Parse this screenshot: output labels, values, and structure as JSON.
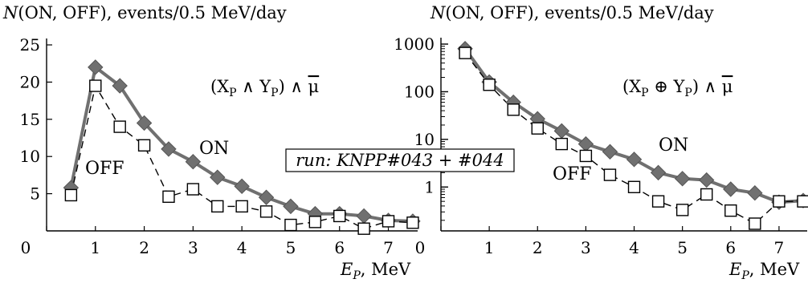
{
  "chart_data": [
    {
      "type": "line",
      "ylabel_parts": [
        "N",
        "(ON, OFF), events/0.5 MeV/day"
      ],
      "xlabel_parts": [
        "E",
        "P",
        ", MeV"
      ],
      "annotation_parts": [
        "(X",
        "P",
        " ∧ Y",
        "P",
        ") ∧ ",
        "μ"
      ],
      "x_ticks": [
        0,
        1,
        2,
        3,
        4,
        5,
        6,
        7
      ],
      "y_ticks": [
        5,
        10,
        15,
        20,
        25
      ],
      "xlim": [
        0,
        7.6
      ],
      "ylim": [
        0,
        25
      ],
      "y_scale": "linear",
      "series": [
        {
          "name": "ON",
          "style": "solid thick, filled diamonds",
          "color": "#707070",
          "x": [
            0.5,
            1.0,
            1.5,
            2.0,
            2.5,
            3.0,
            3.5,
            4.0,
            4.5,
            5.0,
            5.5,
            6.0,
            6.5,
            7.0,
            7.5
          ],
          "values": [
            5.8,
            22.0,
            19.5,
            14.5,
            11.0,
            9.3,
            7.2,
            6.0,
            4.5,
            3.3,
            2.3,
            2.3,
            2.0,
            1.4,
            1.3
          ]
        },
        {
          "name": "OFF",
          "style": "dashed, open squares",
          "color": "#000000",
          "x": [
            0.5,
            1.0,
            1.5,
            2.0,
            2.5,
            3.0,
            3.5,
            4.0,
            4.5,
            5.0,
            5.5,
            6.0,
            6.5,
            7.0,
            7.5
          ],
          "values": [
            4.8,
            19.5,
            14.0,
            11.5,
            4.6,
            5.6,
            3.3,
            3.3,
            2.6,
            0.8,
            1.2,
            2.0,
            0.3,
            1.3,
            1.1
          ]
        }
      ]
    },
    {
      "type": "line",
      "ylabel_parts": [
        "N",
        "(ON, OFF), events/0.5 MeV/day"
      ],
      "xlabel_parts": [
        "E",
        "P",
        ", MeV"
      ],
      "annotation_parts": [
        "(X",
        "P",
        " ⊕ Y",
        "P",
        ") ∧ ",
        "μ"
      ],
      "x_ticks": [
        0,
        1,
        2,
        3,
        4,
        5,
        6,
        7
      ],
      "y_ticks": [
        1,
        10,
        100,
        1000
      ],
      "xlim": [
        0,
        7.6
      ],
      "ylim": [
        0.12,
        1000
      ],
      "y_scale": "log",
      "series": [
        {
          "name": "ON",
          "style": "solid thick, filled diamonds",
          "color": "#707070",
          "x": [
            0.5,
            1.0,
            1.5,
            2.0,
            2.5,
            3.0,
            3.5,
            4.0,
            4.5,
            5.0,
            5.5,
            6.0,
            6.5,
            7.0,
            7.5
          ],
          "values": [
            800,
            160,
            60,
            27,
            15,
            8,
            5.5,
            3.8,
            2.0,
            1.5,
            1.4,
            0.9,
            0.75,
            0.48,
            0.52
          ]
        },
        {
          "name": "OFF",
          "style": "dashed, open squares",
          "color": "#000000",
          "x": [
            0.5,
            1.0,
            1.5,
            2.0,
            2.5,
            3.0,
            3.5,
            4.0,
            4.5,
            5.0,
            5.5,
            6.0,
            6.5,
            7.0,
            7.5
          ],
          "values": [
            650,
            140,
            42,
            17,
            8,
            4.5,
            1.8,
            1.0,
            0.5,
            0.33,
            0.7,
            0.32,
            0.17,
            0.5,
            0.5
          ]
        }
      ]
    }
  ],
  "run_box": "run: KNPP#043 + #044"
}
